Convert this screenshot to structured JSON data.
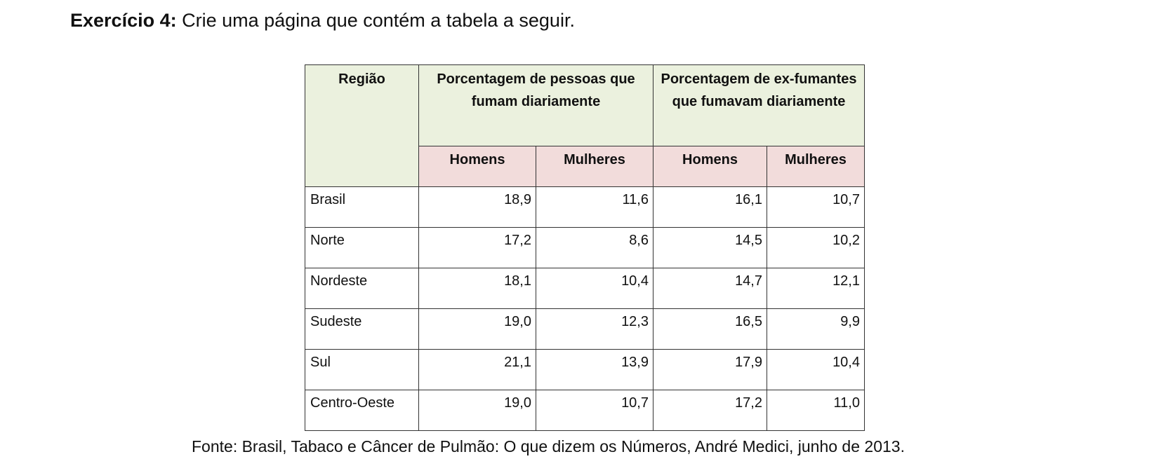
{
  "heading": {
    "label": "Exercício 4:",
    "text": " Crie uma página que contém a tabela a seguir."
  },
  "table": {
    "col_region": "Região",
    "group1": "Porcentagem de pessoas que fumam diariamente",
    "group2": "Porcentagem de ex-fumantes que fumavam diariamente",
    "sub": [
      "Homens",
      "Mulheres",
      "Homens",
      "Mulheres"
    ],
    "rows": [
      {
        "region": "Brasil",
        "v": [
          "18,9",
          "11,6",
          "16,1",
          "10,7"
        ]
      },
      {
        "region": "Norte",
        "v": [
          "17,2",
          "8,6",
          "14,5",
          "10,2"
        ]
      },
      {
        "region": "Nordeste",
        "v": [
          "18,1",
          "10,4",
          "14,7",
          "12,1"
        ]
      },
      {
        "region": "Sudeste",
        "v": [
          "19,0",
          "12,3",
          "16,5",
          "9,9"
        ]
      },
      {
        "region": "Sul",
        "v": [
          "21,1",
          "13,9",
          "17,9",
          "10,4"
        ]
      },
      {
        "region": "Centro-Oeste",
        "v": [
          "19,0",
          "10,7",
          "17,2",
          "11,0"
        ]
      }
    ],
    "colors": {
      "header_green": "#ebf1de",
      "header_pink": "#f2dcdb",
      "border": "#333333"
    }
  },
  "source": "Fonte: Brasil, Tabaco e Câncer de Pulmão: O que dizem os Números, André Medici, junho de 2013."
}
